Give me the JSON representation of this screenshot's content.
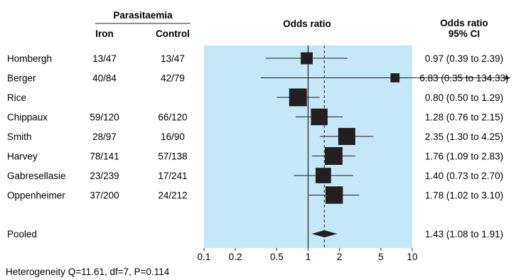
{
  "chart_data": {
    "type": "forest",
    "header": {
      "group": "Parasitaemia",
      "col_iron": "Iron",
      "col_control": "Control",
      "plot_title": "Odds ratio",
      "ci_title_line1": "Odds ratio",
      "ci_title_line2": "95% CI"
    },
    "x_scale": "log",
    "xlim": [
      0.1,
      10
    ],
    "x_ticks": [
      0.1,
      0.2,
      0.5,
      1,
      2,
      5,
      10
    ],
    "x_tick_labels": [
      "0.1",
      "0.2",
      "0.5",
      "1",
      "2",
      "5",
      "10"
    ],
    "reference_line": 1,
    "pooled_line": 1.43,
    "studies": [
      {
        "name": "Hombergh",
        "iron": "13/47",
        "control": "13/47",
        "or": 0.97,
        "lo": 0.39,
        "hi": 2.39,
        "ci_text": "0.97 (0.39 to 2.39)",
        "weight": 0.35,
        "arrow_right": false
      },
      {
        "name": "Berger",
        "iron": "40/84",
        "control": "42/79",
        "or": 6.83,
        "lo": 0.35,
        "hi": 134.33,
        "ci_text": "6.83 (0.35 to 134.33)",
        "weight": 0.15,
        "arrow_right": true
      },
      {
        "name": "Rice",
        "iron": "",
        "control": "",
        "or": 0.8,
        "lo": 0.5,
        "hi": 1.29,
        "ci_text": "0.80 (0.50 to 1.29)",
        "weight": 1.0,
        "arrow_right": false
      },
      {
        "name": "Chippaux",
        "iron": "59/120",
        "control": "66/120",
        "or": 1.28,
        "lo": 0.76,
        "hi": 2.15,
        "ci_text": "1.28 (0.76 to 2.15)",
        "weight": 0.85,
        "arrow_right": false
      },
      {
        "name": "Smith",
        "iron": "28/97",
        "control": "16/90",
        "or": 2.35,
        "lo": 1.3,
        "hi": 4.25,
        "ci_text": "2.35 (1.30 to 4.25)",
        "weight": 0.9,
        "arrow_right": false
      },
      {
        "name": "Harvey",
        "iron": "78/141",
        "control": "57/138",
        "or": 1.76,
        "lo": 1.09,
        "hi": 2.83,
        "ci_text": "1.76 (1.09 to 2.83)",
        "weight": 1.0,
        "arrow_right": false
      },
      {
        "name": "Gabresellasie",
        "iron": "23/239",
        "control": "17/241",
        "or": 1.4,
        "lo": 0.73,
        "hi": 2.7,
        "ci_text": "1.40 (0.73 to 2.70)",
        "weight": 0.7,
        "arrow_right": false
      },
      {
        "name": "Oppenheimer",
        "iron": "37/200",
        "control": "24/212",
        "or": 1.78,
        "lo": 1.02,
        "hi": 3.1,
        "ci_text": "1.78 (1.02 to 3.10)",
        "weight": 0.95,
        "arrow_right": false
      }
    ],
    "pooled": {
      "name": "Pooled",
      "or": 1.43,
      "lo": 1.08,
      "hi": 1.91,
      "ci_text": "1.43 (1.08 to 1.91)"
    },
    "footnote": "Heterogeneity Q=11.61, df=7, P=0.114",
    "colors": {
      "plot_bg": "#c5e8f6",
      "marks": "#231f20"
    }
  }
}
